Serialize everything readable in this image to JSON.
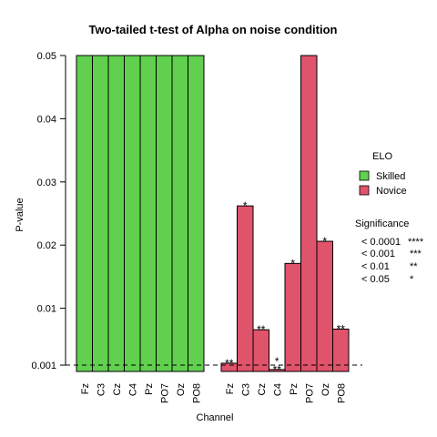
{
  "chart_data": {
    "type": "bar",
    "title": "Two-tailed t-test of Alpha on noise condition",
    "xlabel": "Channel",
    "ylabel": "P-value",
    "ylim": [
      0,
      0.05
    ],
    "yticks": [
      "0.001",
      "0.01",
      "0.02",
      "0.03",
      "0.04",
      "0.05"
    ],
    "ytick_values": [
      0.001,
      0.01,
      0.02,
      0.03,
      0.04,
      0.05
    ],
    "reference_line": 0.001,
    "groups": [
      {
        "name": "Skilled",
        "color": "#61d04f",
        "categories": [
          "Fz",
          "C3",
          "Cz",
          "C4",
          "Pz",
          "PO7",
          "Oz",
          "PO8"
        ],
        "values": [
          0.05,
          0.05,
          0.05,
          0.05,
          0.05,
          0.05,
          0.05,
          0.05
        ],
        "stars": [
          "",
          "",
          "",
          "",
          "",
          "",
          "",
          ""
        ]
      },
      {
        "name": "Novice",
        "color": "#df536b",
        "categories": [
          "Fz",
          "C3",
          "Cz",
          "C4",
          "Pz",
          "PO7",
          "Oz",
          "PO8"
        ],
        "values": [
          0.0013,
          0.0262,
          0.0066,
          0.0003,
          0.0171,
          0.05,
          0.0206,
          0.0067
        ],
        "stars": [
          "**",
          "*",
          "**",
          "*\n**",
          "*",
          "",
          "*",
          "**"
        ]
      }
    ],
    "legend": {
      "title": "ELO",
      "entries": [
        "Skilled",
        "Novice"
      ]
    },
    "significance": {
      "title": "Significance",
      "rows": [
        {
          "threshold": "< 0.0001",
          "stars": "****"
        },
        {
          "threshold": "< 0.001",
          "stars": "***"
        },
        {
          "threshold": "< 0.01",
          "stars": "**"
        },
        {
          "threshold": "< 0.05",
          "stars": "*"
        }
      ]
    }
  }
}
